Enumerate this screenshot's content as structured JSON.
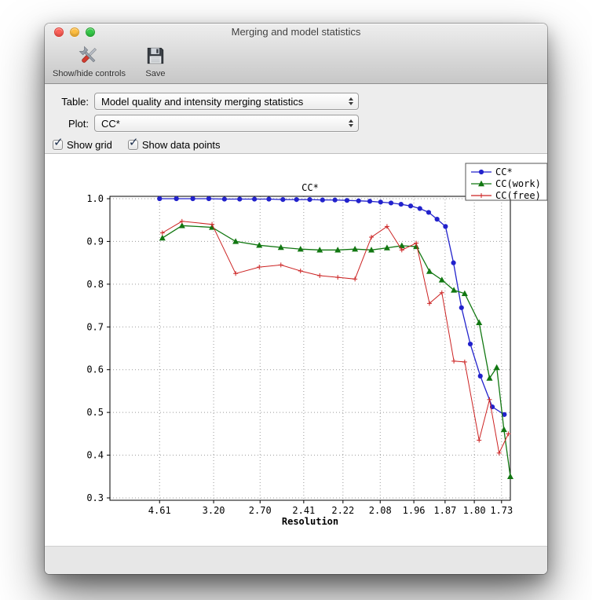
{
  "window": {
    "title": "Merging and model statistics"
  },
  "toolbar": {
    "items": [
      {
        "label": "Show/hide controls",
        "icon": "tools-icon"
      },
      {
        "label": "Save",
        "icon": "save-icon"
      }
    ]
  },
  "controls": {
    "table": {
      "label": "Table:",
      "value": "Model quality and intensity merging statistics"
    },
    "plot": {
      "label": "Plot:",
      "value": "CC*"
    },
    "checkboxes": [
      {
        "label": "Show grid",
        "checked": true,
        "checkmark": "✓"
      },
      {
        "label": "Show data points",
        "checked": true,
        "checkmark": "✓"
      }
    ]
  },
  "chart_data": {
    "type": "line",
    "title": "CC*",
    "xlabel": "Resolution",
    "ylabel": "",
    "ylim": [
      0.3,
      1.0
    ],
    "grid": true,
    "legend_position": "top-right",
    "yticks": [
      0.3,
      0.4,
      0.5,
      0.6,
      0.7,
      0.8,
      0.9,
      1.0
    ],
    "xticks": [
      {
        "label": "4.61",
        "f": 0.124
      },
      {
        "label": "3.20",
        "f": 0.259
      },
      {
        "label": "2.70",
        "f": 0.375
      },
      {
        "label": "2.41",
        "f": 0.484
      },
      {
        "label": "2.22",
        "f": 0.582
      },
      {
        "label": "2.08",
        "f": 0.675
      },
      {
        "label": "1.96",
        "f": 0.759
      },
      {
        "label": "1.87",
        "f": 0.837
      },
      {
        "label": "1.80",
        "f": 0.91
      },
      {
        "label": "1.73",
        "f": 0.978
      }
    ],
    "series": [
      {
        "name": "CC*",
        "color": "#2222cc",
        "marker": "circle",
        "points": [
          [
            0.124,
            1.0
          ],
          [
            0.166,
            1.0
          ],
          [
            0.207,
            1.0
          ],
          [
            0.247,
            1.0
          ],
          [
            0.286,
            0.999
          ],
          [
            0.324,
            0.999
          ],
          [
            0.361,
            0.999
          ],
          [
            0.397,
            0.999
          ],
          [
            0.432,
            0.998
          ],
          [
            0.466,
            0.998
          ],
          [
            0.499,
            0.998
          ],
          [
            0.531,
            0.997
          ],
          [
            0.562,
            0.997
          ],
          [
            0.592,
            0.996
          ],
          [
            0.621,
            0.995
          ],
          [
            0.649,
            0.994
          ],
          [
            0.676,
            0.992
          ],
          [
            0.702,
            0.99
          ],
          [
            0.727,
            0.987
          ],
          [
            0.751,
            0.983
          ],
          [
            0.774,
            0.977
          ],
          [
            0.796,
            0.968
          ],
          [
            0.817,
            0.952
          ],
          [
            0.838,
            0.935
          ],
          [
            0.858,
            0.85
          ],
          [
            0.878,
            0.745
          ],
          [
            0.9,
            0.66
          ],
          [
            0.925,
            0.585
          ],
          [
            0.955,
            0.513
          ],
          [
            0.985,
            0.495
          ]
        ]
      },
      {
        "name": "CC(work)",
        "color": "#117711",
        "marker": "triangle",
        "points": [
          [
            0.131,
            0.908
          ],
          [
            0.18,
            0.937
          ],
          [
            0.255,
            0.933
          ],
          [
            0.314,
            0.9
          ],
          [
            0.373,
            0.891
          ],
          [
            0.427,
            0.886
          ],
          [
            0.476,
            0.882
          ],
          [
            0.524,
            0.88
          ],
          [
            0.569,
            0.88
          ],
          [
            0.612,
            0.882
          ],
          [
            0.653,
            0.88
          ],
          [
            0.692,
            0.885
          ],
          [
            0.729,
            0.89
          ],
          [
            0.765,
            0.888
          ],
          [
            0.798,
            0.83
          ],
          [
            0.829,
            0.81
          ],
          [
            0.859,
            0.786
          ],
          [
            0.886,
            0.778
          ],
          [
            0.922,
            0.71
          ],
          [
            0.948,
            0.58
          ],
          [
            0.966,
            0.605
          ],
          [
            0.984,
            0.46
          ],
          [
            1.0,
            0.35
          ]
        ]
      },
      {
        "name": "CC(free)",
        "color": "#cc2222",
        "marker": "plus",
        "points": [
          [
            0.131,
            0.92
          ],
          [
            0.18,
            0.947
          ],
          [
            0.255,
            0.94
          ],
          [
            0.314,
            0.825
          ],
          [
            0.373,
            0.84
          ],
          [
            0.427,
            0.845
          ],
          [
            0.476,
            0.831
          ],
          [
            0.524,
            0.82
          ],
          [
            0.569,
            0.816
          ],
          [
            0.612,
            0.812
          ],
          [
            0.653,
            0.91
          ],
          [
            0.692,
            0.935
          ],
          [
            0.729,
            0.88
          ],
          [
            0.765,
            0.896
          ],
          [
            0.798,
            0.755
          ],
          [
            0.829,
            0.78
          ],
          [
            0.859,
            0.62
          ],
          [
            0.886,
            0.618
          ],
          [
            0.922,
            0.435
          ],
          [
            0.948,
            0.53
          ],
          [
            0.972,
            0.405
          ],
          [
            0.995,
            0.45
          ]
        ]
      }
    ]
  }
}
